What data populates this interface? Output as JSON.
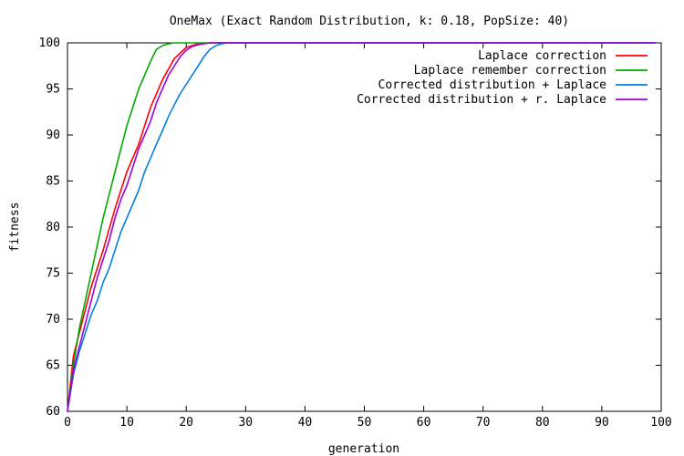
{
  "chart_data": {
    "type": "line",
    "title": "OneMax (Exact Random Distribution, k: 0.18, PopSize: 40)",
    "xlabel": "generation",
    "ylabel": "fitness",
    "xlim": [
      0,
      100
    ],
    "ylim": [
      60,
      100
    ],
    "xticks": [
      0,
      10,
      20,
      30,
      40,
      50,
      60,
      70,
      80,
      90,
      100
    ],
    "yticks": [
      60,
      65,
      70,
      75,
      80,
      85,
      90,
      95,
      100
    ],
    "grid": false,
    "legend_position": "top-right",
    "series": [
      {
        "name": "Laplace correction",
        "color": "#ff0000",
        "x": [
          0,
          1,
          2,
          4,
          6,
          8,
          10,
          12,
          14,
          16,
          18,
          20,
          22,
          24,
          26,
          28,
          99
        ],
        "y": [
          60,
          66,
          68.5,
          73.5,
          77.5,
          82,
          86,
          89,
          93,
          96,
          98.3,
          99.5,
          99.9,
          100,
          100,
          100,
          100
        ]
      },
      {
        "name": "Laplace remember correction",
        "color": "#00aa00",
        "x": [
          0,
          1,
          2,
          3,
          4,
          5,
          6,
          7,
          8,
          9,
          10,
          11,
          12,
          13,
          14,
          15,
          16,
          17,
          18,
          20,
          99
        ],
        "y": [
          60,
          65,
          69,
          72,
          75,
          78,
          81,
          83.5,
          86,
          88.5,
          91,
          93,
          95,
          96.5,
          98,
          99.3,
          99.7,
          99.9,
          100,
          100,
          100
        ]
      },
      {
        "name": "Corrected distribution + Laplace",
        "color": "#0080e0",
        "x": [
          0,
          1,
          2,
          3,
          4,
          5,
          6,
          7,
          8,
          9,
          10,
          11,
          12,
          13,
          14,
          15,
          16,
          17,
          18,
          19,
          20,
          21,
          22,
          23,
          24,
          25,
          26,
          27,
          28,
          99
        ],
        "y": [
          60,
          64,
          66.5,
          68.5,
          70.5,
          72,
          74,
          75.5,
          77.5,
          79.5,
          81,
          82.5,
          84,
          86,
          87.5,
          89,
          90.5,
          92,
          93.3,
          94.5,
          95.5,
          96.5,
          97.5,
          98.5,
          99.3,
          99.7,
          99.9,
          100,
          100,
          100
        ]
      },
      {
        "name": "Corrected distribution + r. Laplace",
        "color": "#a000e0",
        "x": [
          0,
          1,
          2,
          3,
          4,
          5,
          6,
          7,
          8,
          9,
          10,
          11,
          12,
          13,
          14,
          15,
          16,
          17,
          18,
          19,
          20,
          21,
          22,
          23,
          24,
          25,
          99
        ],
        "y": [
          60,
          64.5,
          67,
          69.5,
          72,
          74.5,
          76.5,
          78.5,
          81,
          83,
          84.5,
          86.5,
          88.5,
          90,
          91.5,
          93.5,
          95,
          96.5,
          97.5,
          98.5,
          99.2,
          99.6,
          99.8,
          99.9,
          100,
          100,
          100
        ]
      }
    ]
  }
}
